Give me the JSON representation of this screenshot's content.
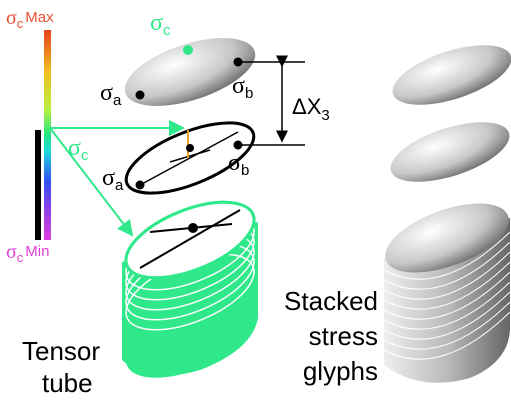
{
  "colorbar": {
    "max_label": {
      "symbol": "σ",
      "subscript": "c",
      "text": "Max"
    },
    "min_label": {
      "symbol": "σ",
      "subscript": "c",
      "text": "Min"
    }
  },
  "top_glyph": {
    "label_c": {
      "symbol": "σ",
      "subscript": "c"
    },
    "label_a": {
      "symbol": "σ",
      "subscript": "a"
    },
    "label_b": {
      "symbol": "σ",
      "subscript": "b"
    }
  },
  "spacing": {
    "symbol": "ΔX",
    "subscript": "3"
  },
  "middle_glyph": {
    "label_c": {
      "symbol": "σ",
      "subscript": "c"
    },
    "label_a": {
      "symbol": "σ",
      "subscript": "a"
    },
    "label_b": {
      "symbol": "σ",
      "subscript": "b"
    }
  },
  "tube_label": [
    "Tensor",
    "tube"
  ],
  "stack_label": [
    "Stacked",
    "stress",
    "glyphs"
  ]
}
